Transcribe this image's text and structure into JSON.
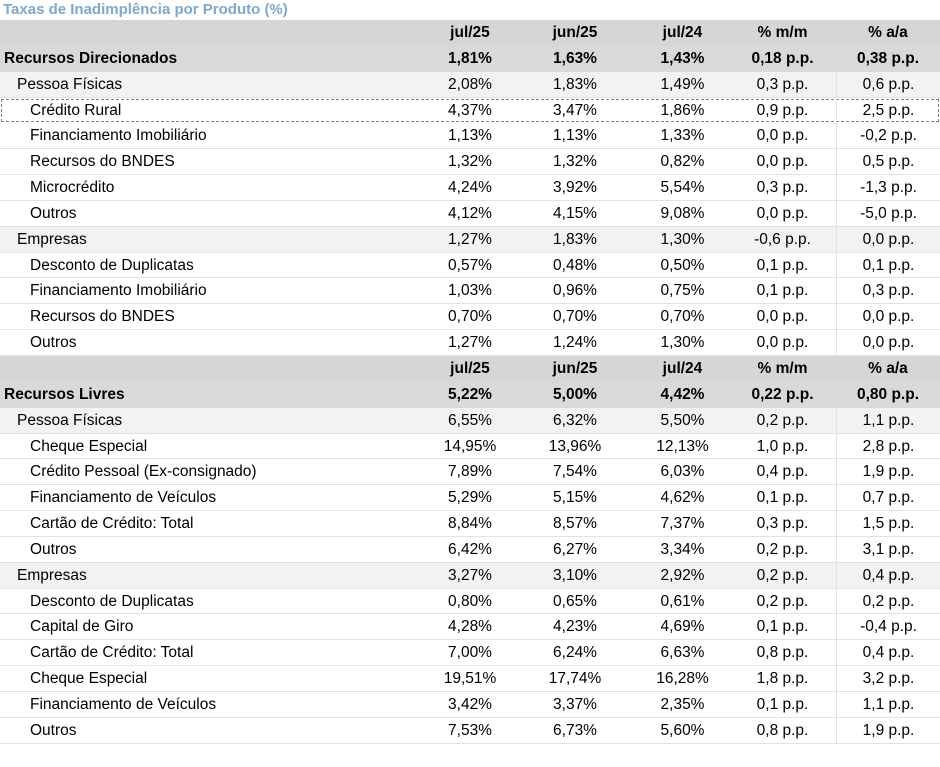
{
  "title": "Taxas de Inadimplência por Produto (%)",
  "headers": [
    "",
    "jul/25",
    "jun/25",
    "jul/24",
    "% m/m",
    "% a/a"
  ],
  "sections": [
    {
      "name": "Recursos Direcionados",
      "values": [
        "1,81%",
        "1,63%",
        "1,43%",
        "0,18 p.p.",
        "0,38 p.p."
      ],
      "categories": [
        {
          "name": "Pessoa Físicas",
          "values": [
            "2,08%",
            "1,83%",
            "1,49%",
            "0,3 p.p.",
            "0,6 p.p."
          ],
          "items": [
            {
              "name": "Crédito Rural",
              "values": [
                "4,37%",
                "3,47%",
                "1,86%",
                "0,9 p.p.",
                "2,5 p.p."
              ],
              "highlighted": true
            },
            {
              "name": "Financiamento Imobiliário",
              "values": [
                "1,13%",
                "1,13%",
                "1,33%",
                "0,0 p.p.",
                "-0,2 p.p."
              ]
            },
            {
              "name": "Recursos do BNDES",
              "values": [
                "1,32%",
                "1,32%",
                "0,82%",
                "0,0 p.p.",
                "0,5 p.p."
              ]
            },
            {
              "name": "Microcrédito",
              "values": [
                "4,24%",
                "3,92%",
                "5,54%",
                "0,3 p.p.",
                "-1,3 p.p."
              ]
            },
            {
              "name": "Outros",
              "values": [
                "4,12%",
                "4,15%",
                "9,08%",
                "0,0 p.p.",
                "-5,0 p.p."
              ]
            }
          ]
        },
        {
          "name": "Empresas",
          "values": [
            "1,27%",
            "1,83%",
            "1,30%",
            "-0,6 p.p.",
            "0,0 p.p."
          ],
          "items": [
            {
              "name": "Desconto de Duplicatas",
              "values": [
                "0,57%",
                "0,48%",
                "0,50%",
                "0,1 p.p.",
                "0,1 p.p."
              ]
            },
            {
              "name": "Financiamento Imobiliário",
              "values": [
                "1,03%",
                "0,96%",
                "0,75%",
                "0,1 p.p.",
                "0,3 p.p."
              ]
            },
            {
              "name": "Recursos do BNDES",
              "values": [
                "0,70%",
                "0,70%",
                "0,70%",
                "0,0 p.p.",
                "0,0 p.p."
              ]
            },
            {
              "name": "Outros",
              "values": [
                "1,27%",
                "1,24%",
                "1,30%",
                "0,0 p.p.",
                "0,0 p.p."
              ]
            }
          ]
        }
      ]
    },
    {
      "name": "Recursos Livres",
      "values": [
        "5,22%",
        "5,00%",
        "4,42%",
        "0,22 p.p.",
        "0,80 p.p."
      ],
      "categories": [
        {
          "name": "Pessoa Físicas",
          "values": [
            "6,55%",
            "6,32%",
            "5,50%",
            "0,2 p.p.",
            "1,1 p.p."
          ],
          "items": [
            {
              "name": "Cheque Especial",
              "values": [
                "14,95%",
                "13,96%",
                "12,13%",
                "1,0 p.p.",
                "2,8 p.p."
              ]
            },
            {
              "name": "Crédito Pessoal (Ex-consignado)",
              "values": [
                "7,89%",
                "7,54%",
                "6,03%",
                "0,4 p.p.",
                "1,9 p.p."
              ]
            },
            {
              "name": "Financiamento de Veículos",
              "values": [
                "5,29%",
                "5,15%",
                "4,62%",
                "0,1 p.p.",
                "0,7 p.p."
              ]
            },
            {
              "name": "Cartão de Crédito: Total",
              "values": [
                "8,84%",
                "8,57%",
                "7,37%",
                "0,3 p.p.",
                "1,5 p.p."
              ]
            },
            {
              "name": "Outros",
              "values": [
                "6,42%",
                "6,27%",
                "3,34%",
                "0,2 p.p.",
                "3,1 p.p."
              ]
            }
          ]
        },
        {
          "name": "Empresas",
          "values": [
            "3,27%",
            "3,10%",
            "2,92%",
            "0,2 p.p.",
            "0,4 p.p."
          ],
          "items": [
            {
              "name": "Desconto de Duplicatas",
              "values": [
                "0,80%",
                "0,65%",
                "0,61%",
                "0,2 p.p.",
                "0,2 p.p."
              ]
            },
            {
              "name": "Capital de Giro",
              "values": [
                "4,28%",
                "4,23%",
                "4,69%",
                "0,1 p.p.",
                "-0,4 p.p."
              ]
            },
            {
              "name": "Cartão de Crédito: Total",
              "values": [
                "7,00%",
                "6,24%",
                "6,63%",
                "0,8 p.p.",
                "0,4 p.p."
              ]
            },
            {
              "name": "Cheque Especial",
              "values": [
                "19,51%",
                "17,74%",
                "16,28%",
                "1,8 p.p.",
                "3,2 p.p."
              ]
            },
            {
              "name": "Financiamento de Veículos",
              "values": [
                "3,42%",
                "3,37%",
                "2,35%",
                "0,1 p.p.",
                "1,1 p.p."
              ]
            },
            {
              "name": "Outros",
              "values": [
                "7,53%",
                "6,73%",
                "5,60%",
                "0,8 p.p.",
                "1,9 p.p."
              ]
            }
          ]
        }
      ]
    }
  ]
}
